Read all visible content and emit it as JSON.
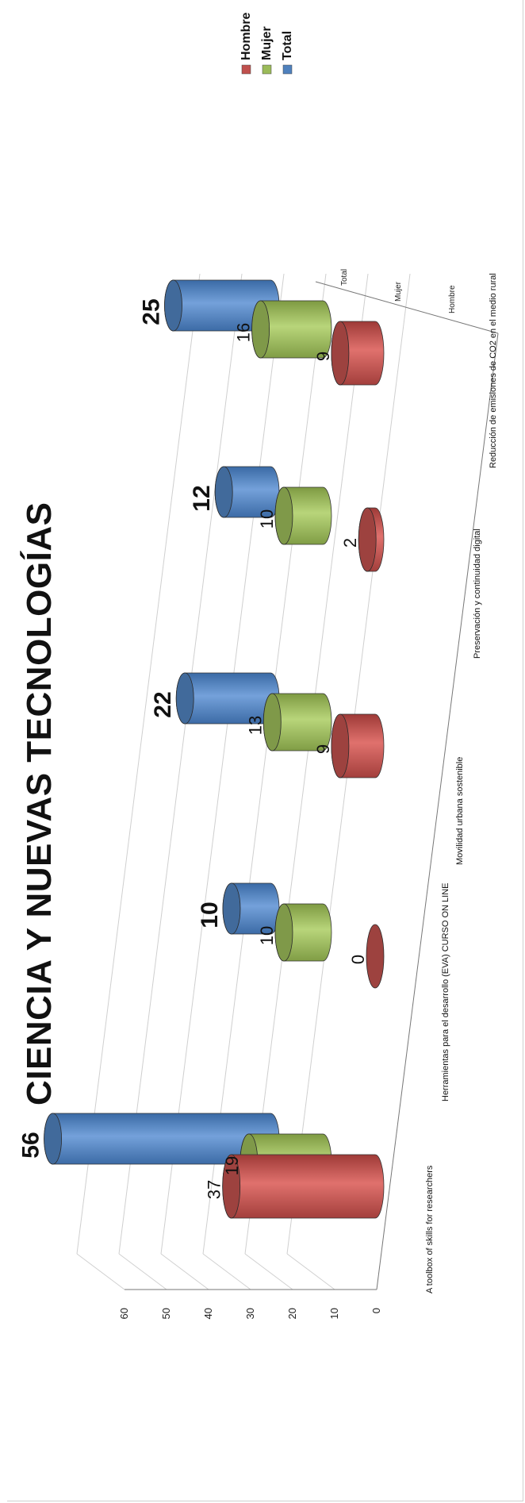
{
  "chart_data": {
    "type": "bar",
    "shape": "cylinder-3d",
    "title": "CIENCIA Y NUEVAS TECNOLOGÍAS",
    "categories": [
      "A toolbox of skills for researchers",
      "Herramientas para el desarrollo (EVA) CURSO ON LINE",
      "Movilidad urbana sostenible",
      "Preservación y continuidad digital",
      "Reducción de emisiones de CO2 en el medio rural"
    ],
    "series": [
      {
        "name": "Hombre",
        "values": [
          37,
          0,
          9,
          2,
          9
        ],
        "color": "#c0504d"
      },
      {
        "name": "Mujer",
        "values": [
          19,
          10,
          13,
          10,
          16
        ],
        "color": "#9bbb59"
      },
      {
        "name": "Total",
        "values": [
          56,
          10,
          22,
          12,
          25
        ],
        "color": "#4f81bd"
      }
    ],
    "yticks": [
      0,
      10,
      20,
      30,
      40,
      50,
      60
    ],
    "ylim": [
      0,
      60
    ],
    "depth_axis_labels": [
      "Total",
      "Mujer",
      "Hombre"
    ],
    "legend": {
      "position": "top-right",
      "entries": [
        "Hombre",
        "Mujer",
        "Total"
      ]
    },
    "grid": true,
    "orientation": "rotated-90"
  }
}
